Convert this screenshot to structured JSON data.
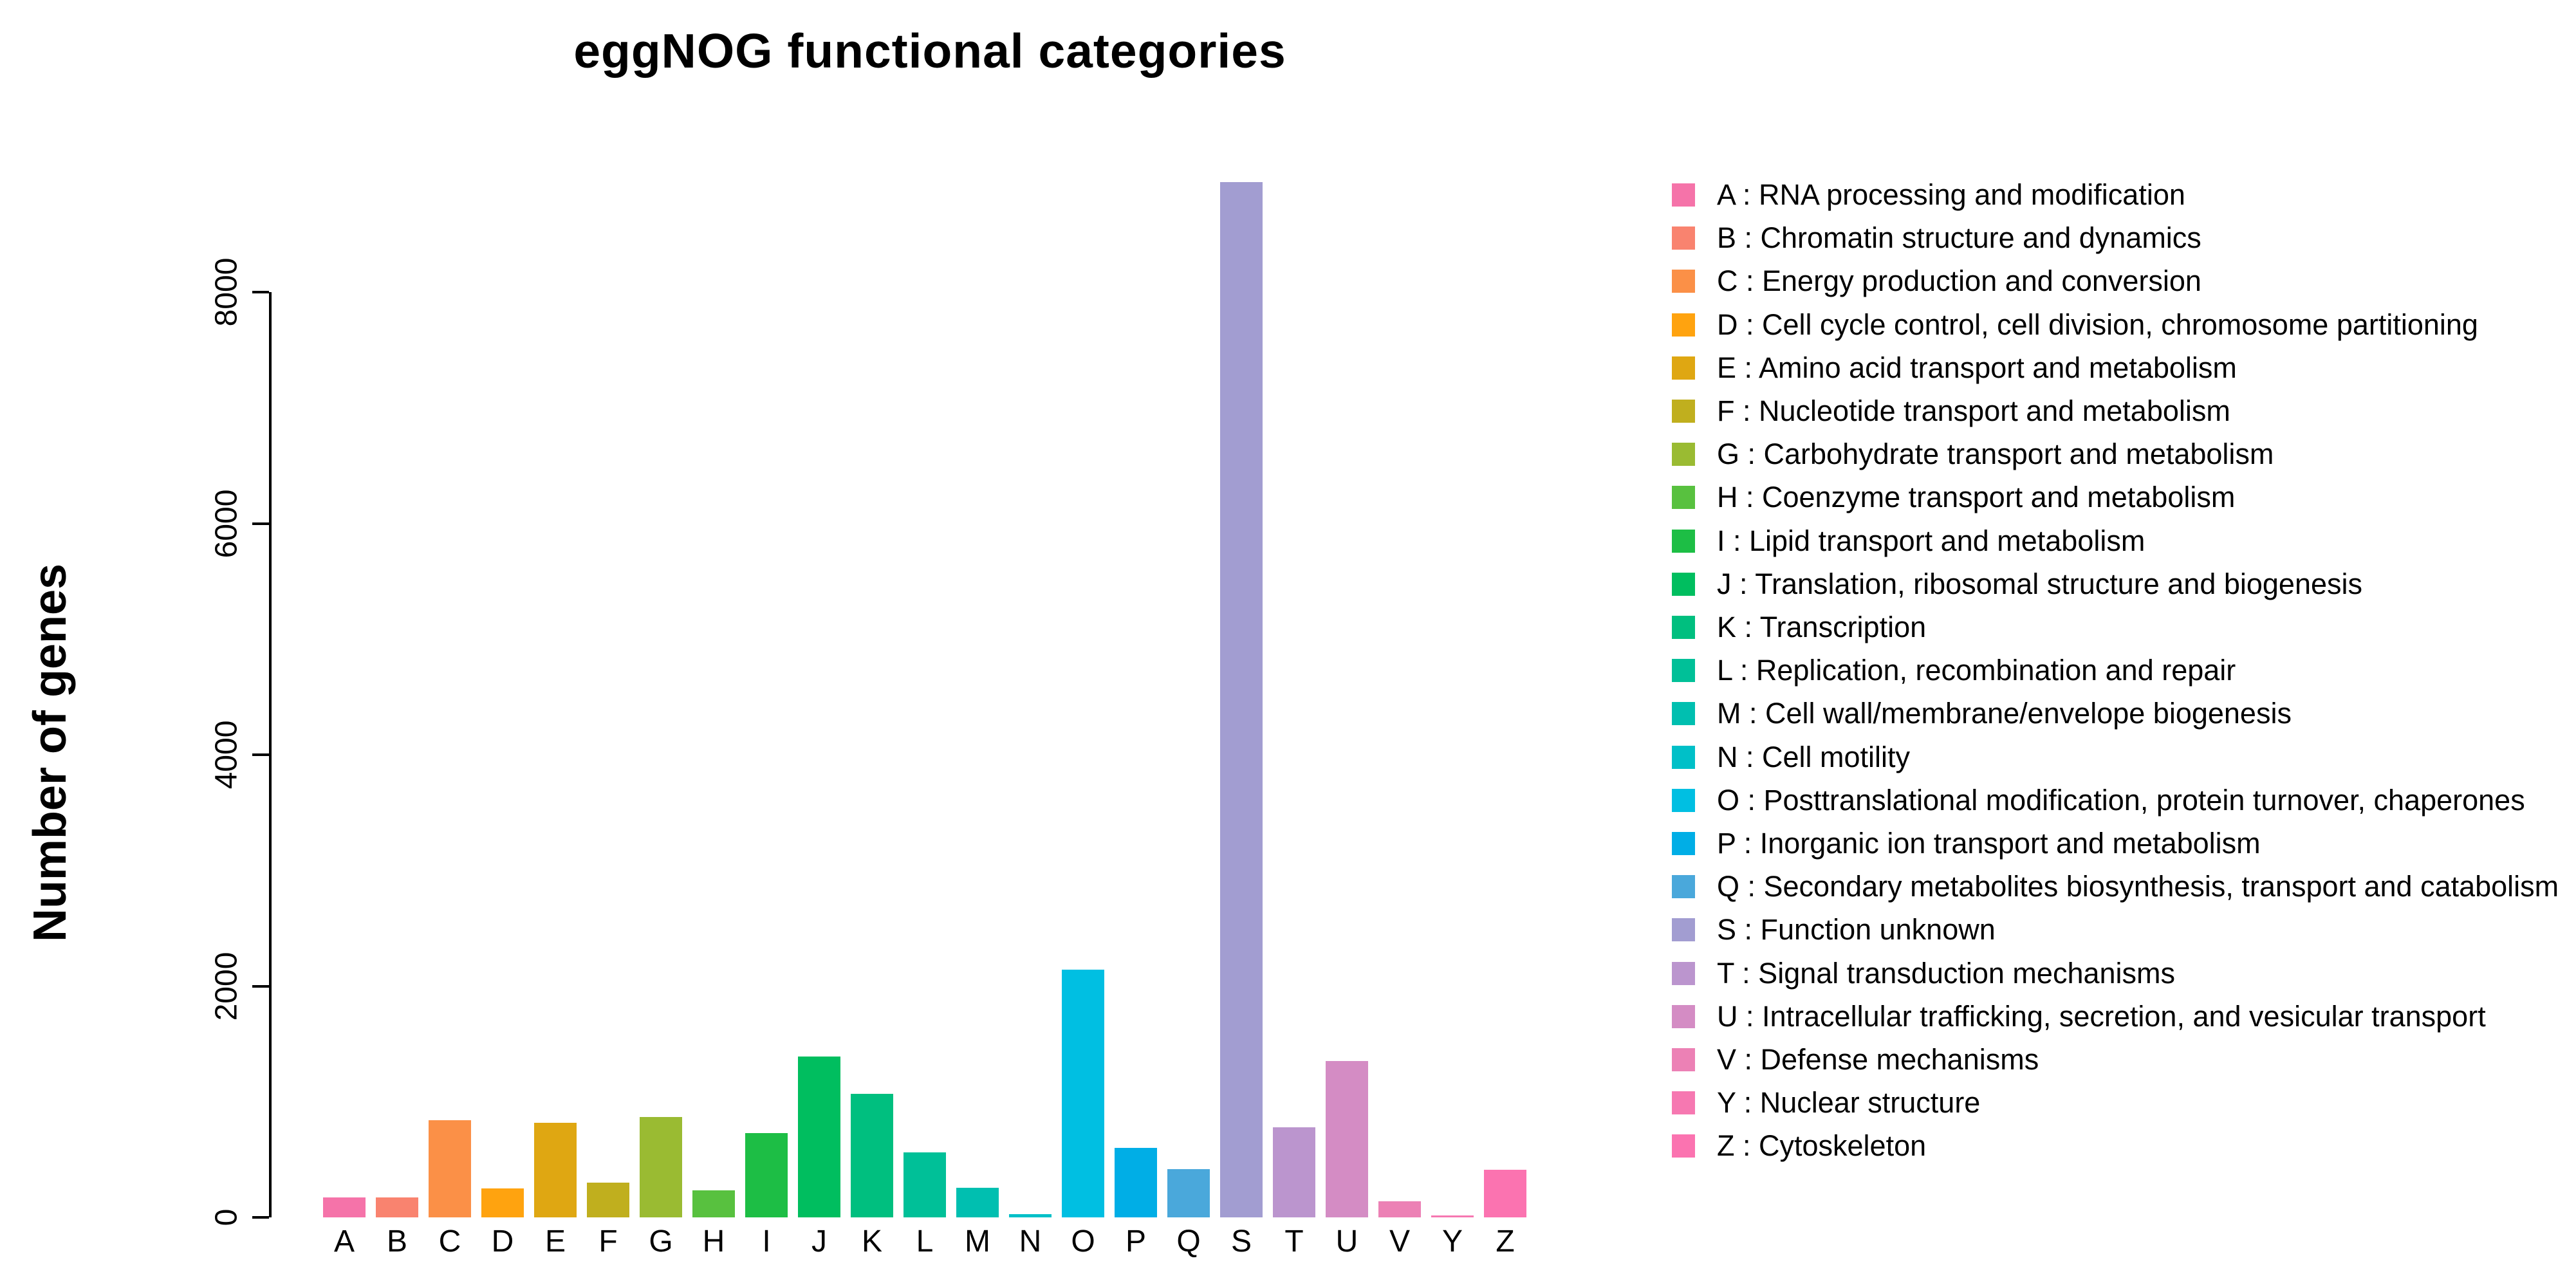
{
  "chart_data": {
    "type": "bar",
    "title": "eggNOG functional categories",
    "xlabel": "",
    "ylabel": "Number of genes",
    "ylim": [
      0,
      9000
    ],
    "yticks": [
      0,
      2000,
      4000,
      6000,
      8000
    ],
    "grid": false,
    "legend_position": "right",
    "legend_separator": " :  ",
    "categories": [
      "A",
      "B",
      "C",
      "D",
      "E",
      "F",
      "G",
      "H",
      "I",
      "J",
      "K",
      "L",
      "M",
      "N",
      "O",
      "P",
      "Q",
      "S",
      "T",
      "U",
      "V",
      "Y",
      "Z"
    ],
    "values": [
      170,
      175,
      840,
      250,
      820,
      300,
      870,
      235,
      730,
      1390,
      1070,
      560,
      255,
      30,
      2140,
      600,
      415,
      8950,
      780,
      1350,
      140,
      15,
      410
    ],
    "colors": [
      "#F573A9",
      "#F9836F",
      "#FB9047",
      "#FFA30F",
      "#DFA712",
      "#C0AF1E",
      "#9ABB32",
      "#58C13F",
      "#1DBE45",
      "#00BE5F",
      "#00BF7F",
      "#00C098",
      "#00BFB0",
      "#00C0C8",
      "#00BFE2",
      "#00AEE6",
      "#4AA8DB",
      "#A29DD1",
      "#BB95CE",
      "#D48CC4",
      "#EC81B5",
      "#F678B1",
      "#FB73B0"
    ],
    "items": [
      {
        "letter": "A",
        "value": 170,
        "color": "#F573A9",
        "description": "RNA processing and modification"
      },
      {
        "letter": "B",
        "value": 175,
        "color": "#F9836F",
        "description": "Chromatin structure and dynamics"
      },
      {
        "letter": "C",
        "value": 840,
        "color": "#FB9047",
        "description": "Energy production and conversion"
      },
      {
        "letter": "D",
        "value": 250,
        "color": "#FFA30F",
        "description": "Cell cycle control, cell division, chromosome partitioning"
      },
      {
        "letter": "E",
        "value": 820,
        "color": "#DFA712",
        "description": "Amino acid transport and metabolism"
      },
      {
        "letter": "F",
        "value": 300,
        "color": "#C0AF1E",
        "description": "Nucleotide transport and metabolism"
      },
      {
        "letter": "G",
        "value": 870,
        "color": "#9ABB32",
        "description": "Carbohydrate transport and metabolism"
      },
      {
        "letter": "H",
        "value": 235,
        "color": "#58C13F",
        "description": "Coenzyme transport and metabolism"
      },
      {
        "letter": "I",
        "value": 730,
        "color": "#1DBE45",
        "description": "Lipid transport and metabolism"
      },
      {
        "letter": "J",
        "value": 1390,
        "color": "#00BE5F",
        "description": "Translation, ribosomal structure and biogenesis"
      },
      {
        "letter": "K",
        "value": 1070,
        "color": "#00BF7F",
        "description": "Transcription"
      },
      {
        "letter": "L",
        "value": 560,
        "color": "#00C098",
        "description": "Replication, recombination and repair"
      },
      {
        "letter": "M",
        "value": 255,
        "color": "#00BFB0",
        "description": "Cell wall/membrane/envelope biogenesis"
      },
      {
        "letter": "N",
        "value": 30,
        "color": "#00C0C8",
        "description": "Cell motility"
      },
      {
        "letter": "O",
        "value": 2140,
        "color": "#00BFE2",
        "description": "Posttranslational modification, protein turnover, chaperones"
      },
      {
        "letter": "P",
        "value": 600,
        "color": "#00AEE6",
        "description": "Inorganic ion transport and metabolism"
      },
      {
        "letter": "Q",
        "value": 415,
        "color": "#4AA8DB",
        "description": "Secondary metabolites biosynthesis, transport and catabolism"
      },
      {
        "letter": "S",
        "value": 8950,
        "color": "#A29DD1",
        "description": "Function unknown"
      },
      {
        "letter": "T",
        "value": 780,
        "color": "#BB95CE",
        "description": "Signal transduction mechanisms"
      },
      {
        "letter": "U",
        "value": 1350,
        "color": "#D48CC4",
        "description": "Intracellular trafficking, secretion, and vesicular transport"
      },
      {
        "letter": "V",
        "value": 140,
        "color": "#EC81B5",
        "description": "Defense mechanisms"
      },
      {
        "letter": "Y",
        "value": 15,
        "color": "#F678B1",
        "description": "Nuclear structure"
      },
      {
        "letter": "Z",
        "value": 410,
        "color": "#FB73B0",
        "description": "Cytoskeleton"
      }
    ]
  }
}
